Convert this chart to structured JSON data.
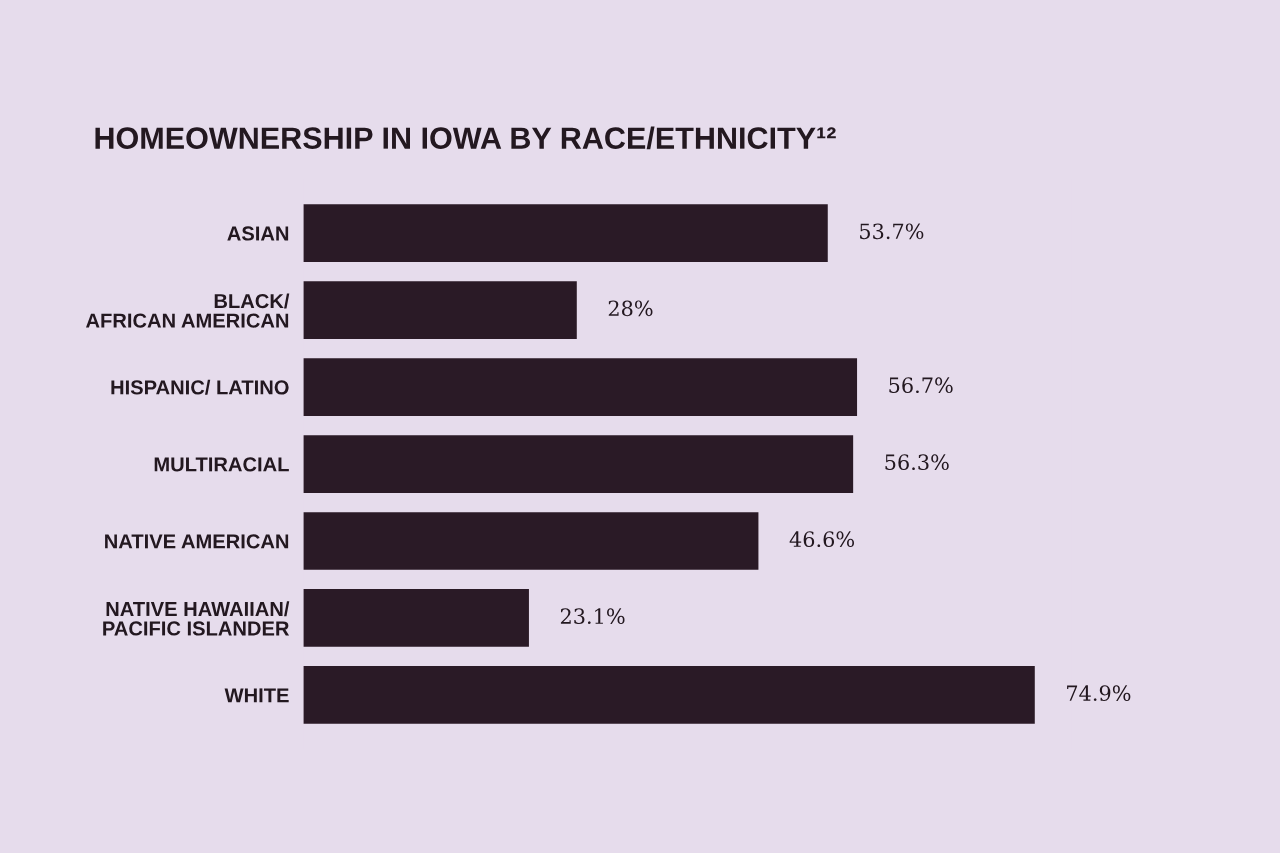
{
  "chart_data": {
    "type": "bar",
    "orientation": "horizontal",
    "title": "HOMEOWNERSHIP IN IOWA BY RACE/ETHNICITY¹²",
    "categories": [
      "ASIAN",
      "BLACK/\nAFRICAN AMERICAN",
      "HISPANIC/ LATINO",
      "MULTIRACIAL",
      "NATIVE AMERICAN",
      "NATIVE HAWAIIAN/\nPACIFIC ISLANDER",
      "WHITE"
    ],
    "values": [
      53.7,
      28,
      56.7,
      56.3,
      46.6,
      23.1,
      74.9
    ],
    "value_labels": [
      "53.7%",
      "28%",
      "56.7%",
      "56.3%",
      "46.6%",
      "23.1%",
      "74.9%"
    ],
    "color": "#2a1a26",
    "tick_labels": "y"
  }
}
